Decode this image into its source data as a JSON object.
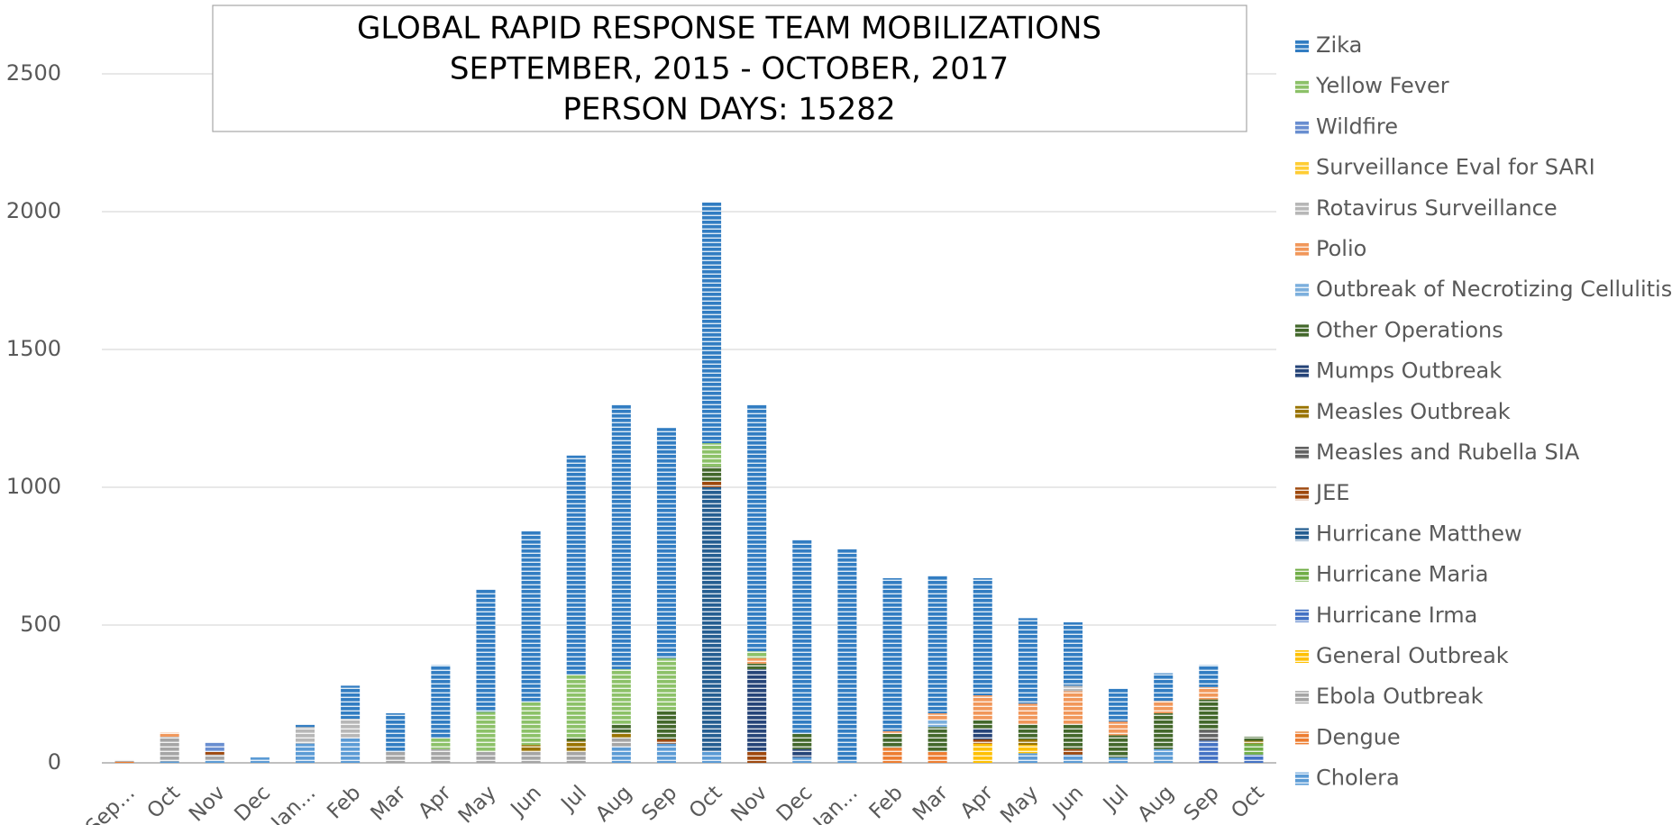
{
  "chart_data": {
    "type": "stacked_bar",
    "title": [
      "GLOBAL RAPID RESPONSE TEAM MOBILIZATIONS",
      "SEPTEMBER, 2015 - OCTOBER, 2017",
      "PERSON DAYS: 15282"
    ],
    "categories": [
      "Sep...",
      "Oct",
      "Nov",
      "Dec",
      "Jan...",
      "Feb",
      "Mar",
      "Apr",
      "May",
      "Jun",
      "Jul",
      "Aug",
      "Sep",
      "Oct",
      "Nov",
      "Dec",
      "Jan...",
      "Feb",
      "Mar",
      "Apr",
      "May",
      "Jun",
      "Jul",
      "Aug",
      "Sep",
      "Oct"
    ],
    "ylim": [
      0,
      2700
    ],
    "yticks": [
      0,
      500,
      1000,
      1500,
      2000,
      2500
    ],
    "grid": true,
    "legend": "right",
    "series": [
      {
        "name": "Cholera",
        "color": "#5b9bd5",
        "values": [
          0,
          5,
          10,
          20,
          70,
          90,
          0,
          0,
          0,
          0,
          0,
          60,
          70,
          40,
          0,
          20,
          10,
          0,
          0,
          0,
          35,
          30,
          20,
          50,
          0,
          0
        ]
      },
      {
        "name": "Dengue",
        "color": "#ed7d31",
        "values": [
          4,
          0,
          0,
          0,
          0,
          0,
          0,
          0,
          0,
          0,
          0,
          0,
          0,
          0,
          0,
          0,
          0,
          55,
          40,
          0,
          0,
          0,
          0,
          0,
          0,
          0
        ]
      },
      {
        "name": "Ebola Outbreak",
        "color": "#a5a5a5",
        "values": [
          6,
          90,
          20,
          0,
          0,
          0,
          40,
          50,
          40,
          40,
          40,
          30,
          0,
          0,
          0,
          0,
          0,
          0,
          0,
          0,
          0,
          0,
          0,
          0,
          0,
          0
        ]
      },
      {
        "name": "General Outbreak",
        "color": "#ffc000",
        "values": [
          0,
          0,
          0,
          0,
          0,
          0,
          0,
          0,
          0,
          0,
          0,
          0,
          0,
          0,
          0,
          0,
          0,
          0,
          0,
          70,
          30,
          0,
          0,
          0,
          0,
          0
        ]
      },
      {
        "name": "Hurricane Irma",
        "color": "#4472c4",
        "values": [
          0,
          0,
          0,
          0,
          0,
          0,
          0,
          0,
          0,
          0,
          0,
          0,
          0,
          0,
          0,
          0,
          0,
          0,
          0,
          0,
          0,
          0,
          0,
          0,
          80,
          30
        ]
      },
      {
        "name": "Hurricane Maria",
        "color": "#70ad47",
        "values": [
          0,
          0,
          0,
          0,
          0,
          0,
          0,
          0,
          0,
          0,
          0,
          0,
          0,
          0,
          0,
          0,
          0,
          0,
          0,
          0,
          0,
          0,
          0,
          0,
          0,
          40
        ]
      },
      {
        "name": "Hurricane Matthew",
        "color": "#255e91",
        "values": [
          0,
          0,
          0,
          0,
          0,
          0,
          0,
          0,
          0,
          0,
          0,
          0,
          0,
          960,
          0,
          0,
          0,
          0,
          0,
          0,
          0,
          0,
          0,
          0,
          0,
          0
        ]
      },
      {
        "name": "JEE",
        "color": "#9e480e",
        "values": [
          0,
          0,
          10,
          0,
          0,
          0,
          0,
          0,
          0,
          0,
          0,
          0,
          15,
          20,
          40,
          0,
          0,
          0,
          0,
          15,
          0,
          20,
          0,
          0,
          0,
          0
        ]
      },
      {
        "name": "Measles and Rubella SIA",
        "color": "#636363",
        "values": [
          0,
          0,
          0,
          0,
          0,
          0,
          0,
          0,
          0,
          0,
          0,
          0,
          0,
          0,
          0,
          0,
          0,
          0,
          0,
          0,
          0,
          0,
          0,
          0,
          40,
          0
        ]
      },
      {
        "name": "Measles Outbreak",
        "color": "#997300",
        "values": [
          0,
          0,
          0,
          0,
          0,
          0,
          0,
          0,
          0,
          25,
          40,
          20,
          0,
          0,
          0,
          0,
          0,
          0,
          0,
          0,
          20,
          0,
          0,
          0,
          0,
          10
        ]
      },
      {
        "name": "Mumps Outbreak",
        "color": "#264478",
        "values": [
          0,
          0,
          0,
          0,
          0,
          0,
          0,
          0,
          0,
          0,
          0,
          0,
          0,
          0,
          300,
          30,
          0,
          0,
          0,
          40,
          0,
          0,
          0,
          0,
          0,
          0
        ]
      },
      {
        "name": "Other Operations",
        "color": "#43682b",
        "values": [
          0,
          0,
          0,
          0,
          0,
          0,
          0,
          0,
          0,
          0,
          10,
          30,
          105,
          55,
          20,
          55,
          0,
          50,
          90,
          30,
          55,
          90,
          80,
          130,
          110,
          15
        ]
      },
      {
        "name": "Outbreak of Necrotizing Cellulitis",
        "color": "#7cafdd",
        "values": [
          0,
          0,
          0,
          0,
          0,
          0,
          0,
          0,
          0,
          0,
          0,
          0,
          0,
          0,
          0,
          0,
          0,
          0,
          25,
          0,
          0,
          0,
          0,
          0,
          0,
          0
        ]
      },
      {
        "name": "Polio",
        "color": "#f1975a",
        "values": [
          0,
          15,
          0,
          0,
          0,
          0,
          0,
          0,
          0,
          0,
          0,
          0,
          0,
          0,
          20,
          0,
          0,
          10,
          25,
          90,
          75,
          120,
          50,
          45,
          45,
          0
        ]
      },
      {
        "name": "Rotavirus Surveillance",
        "color": "#b7b7b7",
        "values": [
          0,
          0,
          0,
          0,
          60,
          70,
          0,
          0,
          0,
          0,
          0,
          0,
          0,
          0,
          0,
          0,
          0,
          0,
          0,
          0,
          0,
          20,
          0,
          0,
          0,
          0
        ]
      },
      {
        "name": "Surveillance Eval for SARI",
        "color": "#ffcd33",
        "values": [
          0,
          0,
          0,
          0,
          0,
          0,
          0,
          0,
          0,
          0,
          0,
          0,
          0,
          0,
          0,
          0,
          0,
          0,
          0,
          0,
          0,
          0,
          0,
          0,
          0,
          0
        ]
      },
      {
        "name": "Wildfire",
        "color": "#698ed0",
        "values": [
          0,
          0,
          35,
          0,
          0,
          0,
          0,
          0,
          0,
          0,
          0,
          0,
          0,
          0,
          0,
          0,
          0,
          0,
          0,
          0,
          0,
          0,
          0,
          0,
          0,
          0
        ]
      },
      {
        "name": "Yellow Fever",
        "color": "#8cc168",
        "values": [
          0,
          0,
          0,
          0,
          0,
          0,
          0,
          40,
          145,
          155,
          230,
          200,
          190,
          85,
          25,
          0,
          0,
          0,
          0,
          0,
          0,
          0,
          0,
          0,
          0,
          0
        ]
      },
      {
        "name": "Zika",
        "color": "#327dc2",
        "values": [
          0,
          0,
          0,
          0,
          10,
          120,
          140,
          265,
          445,
          620,
          795,
          960,
          835,
          875,
          895,
          705,
          765,
          555,
          500,
          425,
          310,
          230,
          120,
          100,
          80,
          0
        ]
      }
    ]
  }
}
